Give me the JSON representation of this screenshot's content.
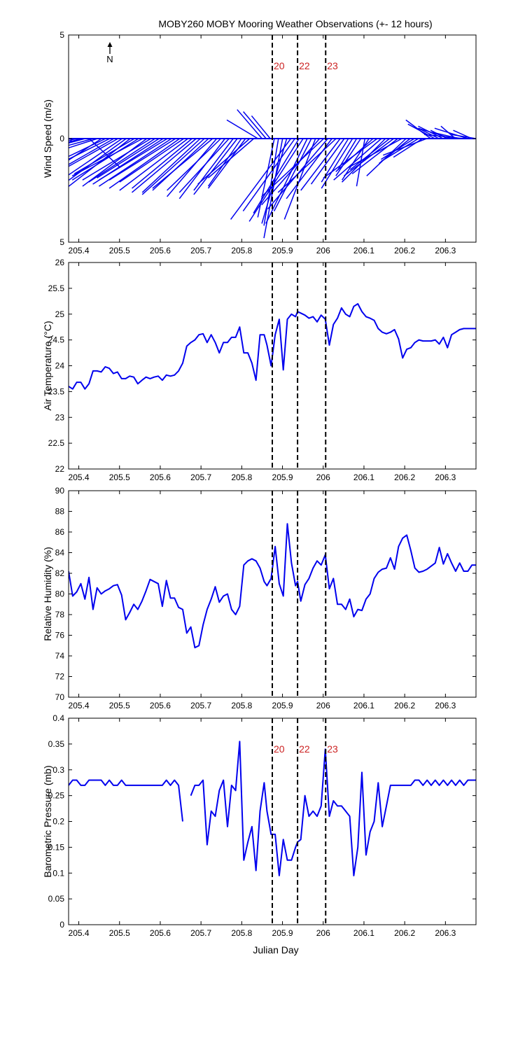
{
  "title": "MOBY260 MOBY Mooring Weather Observations (+- 12 hours)",
  "xlabel": "Julian Day",
  "north_label": "N",
  "colors": {
    "series": "#0000ee",
    "marker_label": "#cc2222",
    "axis": "#000000"
  },
  "markers": [
    {
      "x": 205.875,
      "label": "20"
    },
    {
      "x": 205.937,
      "label": "22"
    },
    {
      "x": 206.006,
      "label": "23"
    }
  ],
  "xticks": [
    205.4,
    205.5,
    205.6,
    205.7,
    205.8,
    205.9,
    206,
    206.1,
    206.2,
    206.3
  ],
  "chart_data": [
    {
      "type": "quiver",
      "id": "wind",
      "ylabel": "Wind Speed (m/s)",
      "xlim": [
        205.375,
        206.375
      ],
      "ylim": [
        -5,
        5
      ],
      "yticks": [
        5,
        0,
        -5
      ],
      "ytick_labels": [
        "5",
        "0",
        "5"
      ],
      "show_marker_labels": true,
      "u": [
        -1.9,
        -1.3,
        -1.8,
        -2.1,
        -2.6,
        1.5,
        -2.2,
        -2.8,
        -2.3,
        -2.5,
        -2.6,
        -2.8,
        -3.2,
        -2.8,
        -2.9,
        -3.1,
        -2.9,
        -3.2,
        -3.4,
        -3.1,
        -3.3,
        -3.2,
        -3.0,
        -3.4,
        -3.3,
        -3.5,
        -3.2,
        -3.4,
        -3.1,
        -3.3,
        -2.9,
        -3.1,
        -2.8,
        -3.0,
        -2.7,
        -2.9,
        -2.4,
        -2.6,
        -2.2,
        -2.4,
        -1.9,
        -2.1,
        -1.6,
        -1.8,
        -2.5,
        -2.2,
        -1.5,
        -1.2,
        -1.1,
        -0.9,
        -0.8,
        -0.7,
        -0.9,
        -1.2,
        -2.9,
        -2.5,
        -2.2,
        -2.6,
        -2.0,
        -1.8,
        -1.5,
        -2.8,
        -3.0,
        -2.9,
        -2.2,
        -2.8,
        -1.9,
        -1.6,
        -1.3,
        -1.5,
        -0.9,
        -1.2,
        -0.4,
        -1.3,
        -1.8,
        -2.6,
        -2.3,
        -2.1,
        -1.9,
        -2.4,
        -2.2,
        -2.6,
        -1.9,
        -1.5,
        -1.6,
        -1.8,
        -1.4,
        -2.1,
        -1.2,
        -1.3,
        -1.0,
        -1.2,
        -0.8,
        -1.6,
        -0.7,
        -1.3,
        -1.9,
        -1.6,
        -0.9,
        -1.2
      ],
      "v": [
        -1.9,
        -1.5,
        -0.4,
        -0.6,
        -0.7,
        -1.4,
        -0.6,
        -0.9,
        -1.5,
        -1.2,
        -1.3,
        -1.6,
        -1.8,
        -1.9,
        -2.1,
        -2.4,
        -1.7,
        -2.0,
        -1.8,
        -2.3,
        -2.0,
        -2.1,
        -1.9,
        -2.2,
        -2.0,
        -2.3,
        -2.0,
        -2.4,
        -2.1,
        -2.5,
        -2.4,
        -2.6,
        -2.6,
        -2.7,
        -2.5,
        -2.4,
        -2.8,
        -2.5,
        -2.9,
        -2.6,
        -2.5,
        -2.7,
        -2.3,
        -2.4,
        -2.2,
        -1.9,
        0.9,
        1.4,
        1.3,
        1.1,
        -3.8,
        -4.2,
        -4.8,
        -4.1,
        -3.9,
        -3.5,
        -3.6,
        -4.0,
        -4.1,
        -3.5,
        -3.9,
        -3.2,
        -2.8,
        -3.4,
        -2.9,
        -2.6,
        -2.5,
        -2.2,
        -2.1,
        -2.4,
        -1.5,
        -1.8,
        -2.3,
        -2.0,
        -1.6,
        -1.9,
        -2.0,
        -2.1,
        -1.5,
        -1.8,
        -1.7,
        -1.4,
        -1.8,
        -1.2,
        -1.0,
        -1.1,
        -0.9,
        -0.8,
        0.9,
        0.7,
        0.5,
        0.6,
        0.4,
        0.5,
        0.6,
        0.3,
        0.2,
        0.5,
        0.4,
        0.2
      ]
    },
    {
      "type": "line",
      "id": "airtemp",
      "ylabel": "Air Temperature (°C)",
      "xlim": [
        205.375,
        206.375
      ],
      "ylim": [
        22,
        26
      ],
      "yticks": [
        22,
        22.5,
        23,
        23.5,
        24,
        24.5,
        25,
        25.5,
        26
      ],
      "ytick_labels": [
        "22",
        "22.5",
        "23",
        "23.5",
        "24",
        "24.5",
        "25",
        "25.5",
        "26"
      ],
      "show_marker_labels": false,
      "x": [
        205.375,
        205.385,
        205.395,
        205.405,
        205.415,
        205.425,
        205.435,
        205.445,
        205.455,
        205.465,
        205.475,
        205.485,
        205.495,
        205.505,
        205.515,
        205.525,
        205.535,
        205.545,
        205.555,
        205.565,
        205.575,
        205.585,
        205.595,
        205.605,
        205.615,
        205.625,
        205.635,
        205.645,
        205.655,
        205.665,
        205.675,
        205.685,
        205.695,
        205.705,
        205.715,
        205.725,
        205.735,
        205.745,
        205.755,
        205.765,
        205.775,
        205.785,
        205.795,
        205.805,
        205.815,
        205.825,
        205.835,
        205.845,
        205.855,
        205.862,
        205.872,
        205.882,
        205.892,
        205.902,
        205.912,
        205.922,
        205.932,
        205.937,
        205.945,
        205.955,
        205.965,
        205.975,
        205.985,
        205.995,
        206.005,
        206.015,
        206.025,
        206.035,
        206.045,
        206.055,
        206.065,
        206.075,
        206.085,
        206.095,
        206.105,
        206.115,
        206.125,
        206.135,
        206.145,
        206.155,
        206.165,
        206.175,
        206.185,
        206.195,
        206.205,
        206.215,
        206.225,
        206.235,
        206.245,
        206.255,
        206.265,
        206.275,
        206.285,
        206.295,
        206.305,
        206.315,
        206.325,
        206.335,
        206.345,
        206.355,
        206.365,
        206.375
      ],
      "y": [
        23.6,
        23.55,
        23.68,
        23.68,
        23.55,
        23.65,
        23.9,
        23.9,
        23.88,
        23.98,
        23.95,
        23.85,
        23.88,
        23.75,
        23.75,
        23.8,
        23.78,
        23.65,
        23.72,
        23.78,
        23.75,
        23.78,
        23.8,
        23.72,
        23.82,
        23.8,
        23.82,
        23.9,
        24.05,
        24.38,
        24.45,
        24.5,
        24.6,
        24.62,
        24.45,
        24.6,
        24.45,
        24.25,
        24.45,
        24.45,
        24.55,
        24.55,
        24.75,
        24.25,
        24.25,
        24.05,
        23.72,
        24.6,
        24.6,
        24.4,
        24.0,
        24.6,
        24.9,
        23.92,
        24.9,
        25.0,
        24.95,
        25.05,
        25.02,
        24.98,
        24.92,
        24.95,
        24.85,
        24.98,
        24.9,
        24.4,
        24.8,
        24.92,
        25.12,
        25.0,
        24.95,
        25.15,
        25.2,
        25.05,
        24.95,
        24.92,
        24.88,
        24.72,
        24.65,
        24.62,
        24.65,
        24.7,
        24.52,
        24.15,
        24.32,
        24.35,
        24.45,
        24.5,
        24.48,
        24.48,
        24.48,
        24.5,
        24.42,
        24.55,
        24.35,
        24.6,
        24.65,
        24.7,
        24.72,
        24.72,
        24.72,
        24.72
      ]
    },
    {
      "type": "line",
      "id": "humidity",
      "ylabel": "Relative Humidity (%)",
      "xlim": [
        205.375,
        206.375
      ],
      "ylim": [
        70,
        90
      ],
      "yticks": [
        70,
        72,
        74,
        76,
        78,
        80,
        82,
        84,
        86,
        88,
        90
      ],
      "ytick_labels": [
        "70",
        "72",
        "74",
        "76",
        "78",
        "80",
        "82",
        "84",
        "86",
        "88",
        "90"
      ],
      "show_marker_labels": false,
      "x": [
        205.375,
        205.385,
        205.395,
        205.405,
        205.415,
        205.425,
        205.435,
        205.445,
        205.455,
        205.465,
        205.475,
        205.485,
        205.495,
        205.505,
        205.515,
        205.525,
        205.535,
        205.545,
        205.555,
        205.565,
        205.575,
        205.585,
        205.595,
        205.605,
        205.615,
        205.625,
        205.635,
        205.645,
        205.655,
        205.665,
        205.675,
        205.685,
        205.695,
        205.705,
        205.715,
        205.725,
        205.735,
        205.745,
        205.755,
        205.765,
        205.775,
        205.785,
        205.795,
        205.805,
        205.815,
        205.825,
        205.835,
        205.845,
        205.855,
        205.862,
        205.872,
        205.882,
        205.892,
        205.902,
        205.912,
        205.922,
        205.932,
        205.937,
        205.945,
        205.955,
        205.965,
        205.975,
        205.985,
        205.995,
        206.005,
        206.015,
        206.025,
        206.035,
        206.045,
        206.055,
        206.065,
        206.075,
        206.085,
        206.095,
        206.105,
        206.115,
        206.125,
        206.135,
        206.145,
        206.155,
        206.165,
        206.175,
        206.185,
        206.195,
        206.205,
        206.215,
        206.225,
        206.235,
        206.245,
        206.255,
        206.265,
        206.275,
        206.285,
        206.295,
        206.305,
        206.315,
        206.325,
        206.335,
        206.345,
        206.355,
        206.365,
        206.375
      ],
      "y": [
        82.2,
        79.8,
        80.2,
        81.0,
        79.5,
        81.6,
        78.5,
        80.6,
        80.0,
        80.3,
        80.5,
        80.8,
        80.9,
        79.9,
        77.5,
        78.2,
        79.0,
        78.5,
        79.3,
        80.3,
        81.4,
        81.2,
        81.0,
        78.8,
        81.3,
        79.6,
        79.6,
        78.7,
        78.5,
        76.2,
        76.8,
        74.8,
        75.0,
        77.0,
        78.5,
        79.5,
        80.7,
        79.2,
        79.8,
        80.0,
        78.5,
        78.0,
        78.8,
        82.8,
        83.2,
        83.4,
        83.2,
        82.5,
        81.2,
        80.8,
        81.5,
        84.6,
        81.0,
        79.8,
        86.8,
        83.0,
        80.8,
        81.2,
        79.3,
        80.9,
        81.5,
        82.5,
        83.2,
        82.8,
        83.8,
        80.5,
        81.5,
        79.0,
        79.0,
        78.5,
        79.5,
        77.8,
        78.5,
        78.4,
        79.5,
        80.0,
        81.5,
        82.1,
        82.4,
        82.5,
        83.5,
        82.4,
        84.6,
        85.4,
        85.7,
        84.2,
        82.5,
        82.1,
        82.2,
        82.4,
        82.7,
        83.0,
        84.5,
        82.9,
        83.9,
        83.0,
        82.2,
        83.0,
        82.2,
        82.2,
        82.8,
        82.8
      ]
    },
    {
      "type": "line",
      "id": "pressure",
      "ylabel": "Barometric Pressure (mb)",
      "xlim": [
        205.375,
        206.375
      ],
      "ylim": [
        0,
        0.4
      ],
      "yticks": [
        0,
        0.05,
        0.1,
        0.15,
        0.2,
        0.25,
        0.3,
        0.35,
        0.4
      ],
      "ytick_labels": [
        "0",
        "0.05",
        "0.1",
        "0.15",
        "0.2",
        "0.25",
        "0.3",
        "0.35",
        "0.4"
      ],
      "show_marker_labels": true,
      "x": [
        205.375,
        205.385,
        205.395,
        205.405,
        205.415,
        205.425,
        205.435,
        205.445,
        205.455,
        205.465,
        205.475,
        205.485,
        205.495,
        205.505,
        205.515,
        205.525,
        205.535,
        205.545,
        205.555,
        205.565,
        205.575,
        205.585,
        205.595,
        205.605,
        205.615,
        205.625,
        205.635,
        205.645,
        205.655,
        205.665,
        205.675,
        205.685,
        205.695,
        205.705,
        205.715,
        205.725,
        205.735,
        205.745,
        205.755,
        205.765,
        205.775,
        205.785,
        205.795,
        205.805,
        205.815,
        205.825,
        205.835,
        205.845,
        205.855,
        205.862,
        205.872,
        205.882,
        205.892,
        205.902,
        205.912,
        205.922,
        205.932,
        205.937,
        205.945,
        205.955,
        205.965,
        205.975,
        205.985,
        205.995,
        206.005,
        206.015,
        206.025,
        206.035,
        206.045,
        206.055,
        206.065,
        206.075,
        206.085,
        206.095,
        206.105,
        206.115,
        206.125,
        206.135,
        206.145,
        206.155,
        206.165,
        206.175,
        206.185,
        206.195,
        206.205,
        206.215,
        206.225,
        206.235,
        206.245,
        206.255,
        206.265,
        206.275,
        206.285,
        206.295,
        206.305,
        206.315,
        206.325,
        206.335,
        206.345,
        206.355,
        206.365,
        206.375
      ],
      "y": [
        0.27,
        0.28,
        0.28,
        0.27,
        0.27,
        0.28,
        0.28,
        0.28,
        0.28,
        0.27,
        0.28,
        0.27,
        0.27,
        0.28,
        0.27,
        0.27,
        0.27,
        0.27,
        0.27,
        0.27,
        0.27,
        0.27,
        0.27,
        0.27,
        0.28,
        0.27,
        0.28,
        0.27,
        0.2,
        null,
        0.25,
        0.27,
        0.27,
        0.28,
        0.155,
        0.22,
        0.21,
        0.26,
        0.28,
        0.19,
        0.27,
        0.26,
        0.355,
        0.125,
        0.16,
        0.19,
        0.105,
        0.22,
        0.275,
        0.22,
        0.175,
        0.175,
        0.095,
        0.165,
        0.125,
        0.125,
        0.15,
        0.16,
        0.165,
        0.25,
        0.21,
        0.22,
        0.21,
        0.23,
        0.34,
        0.21,
        0.24,
        0.23,
        0.23,
        0.22,
        0.21,
        0.095,
        0.15,
        0.295,
        0.135,
        0.18,
        0.2,
        0.275,
        0.19,
        0.23,
        0.27,
        0.27,
        0.27,
        0.27,
        0.27,
        0.27,
        0.28,
        0.28,
        0.27,
        0.28,
        0.27,
        0.28,
        0.27,
        0.28,
        0.27,
        0.28,
        0.27,
        0.28,
        0.27,
        0.28,
        0.28,
        0.28
      ]
    }
  ]
}
